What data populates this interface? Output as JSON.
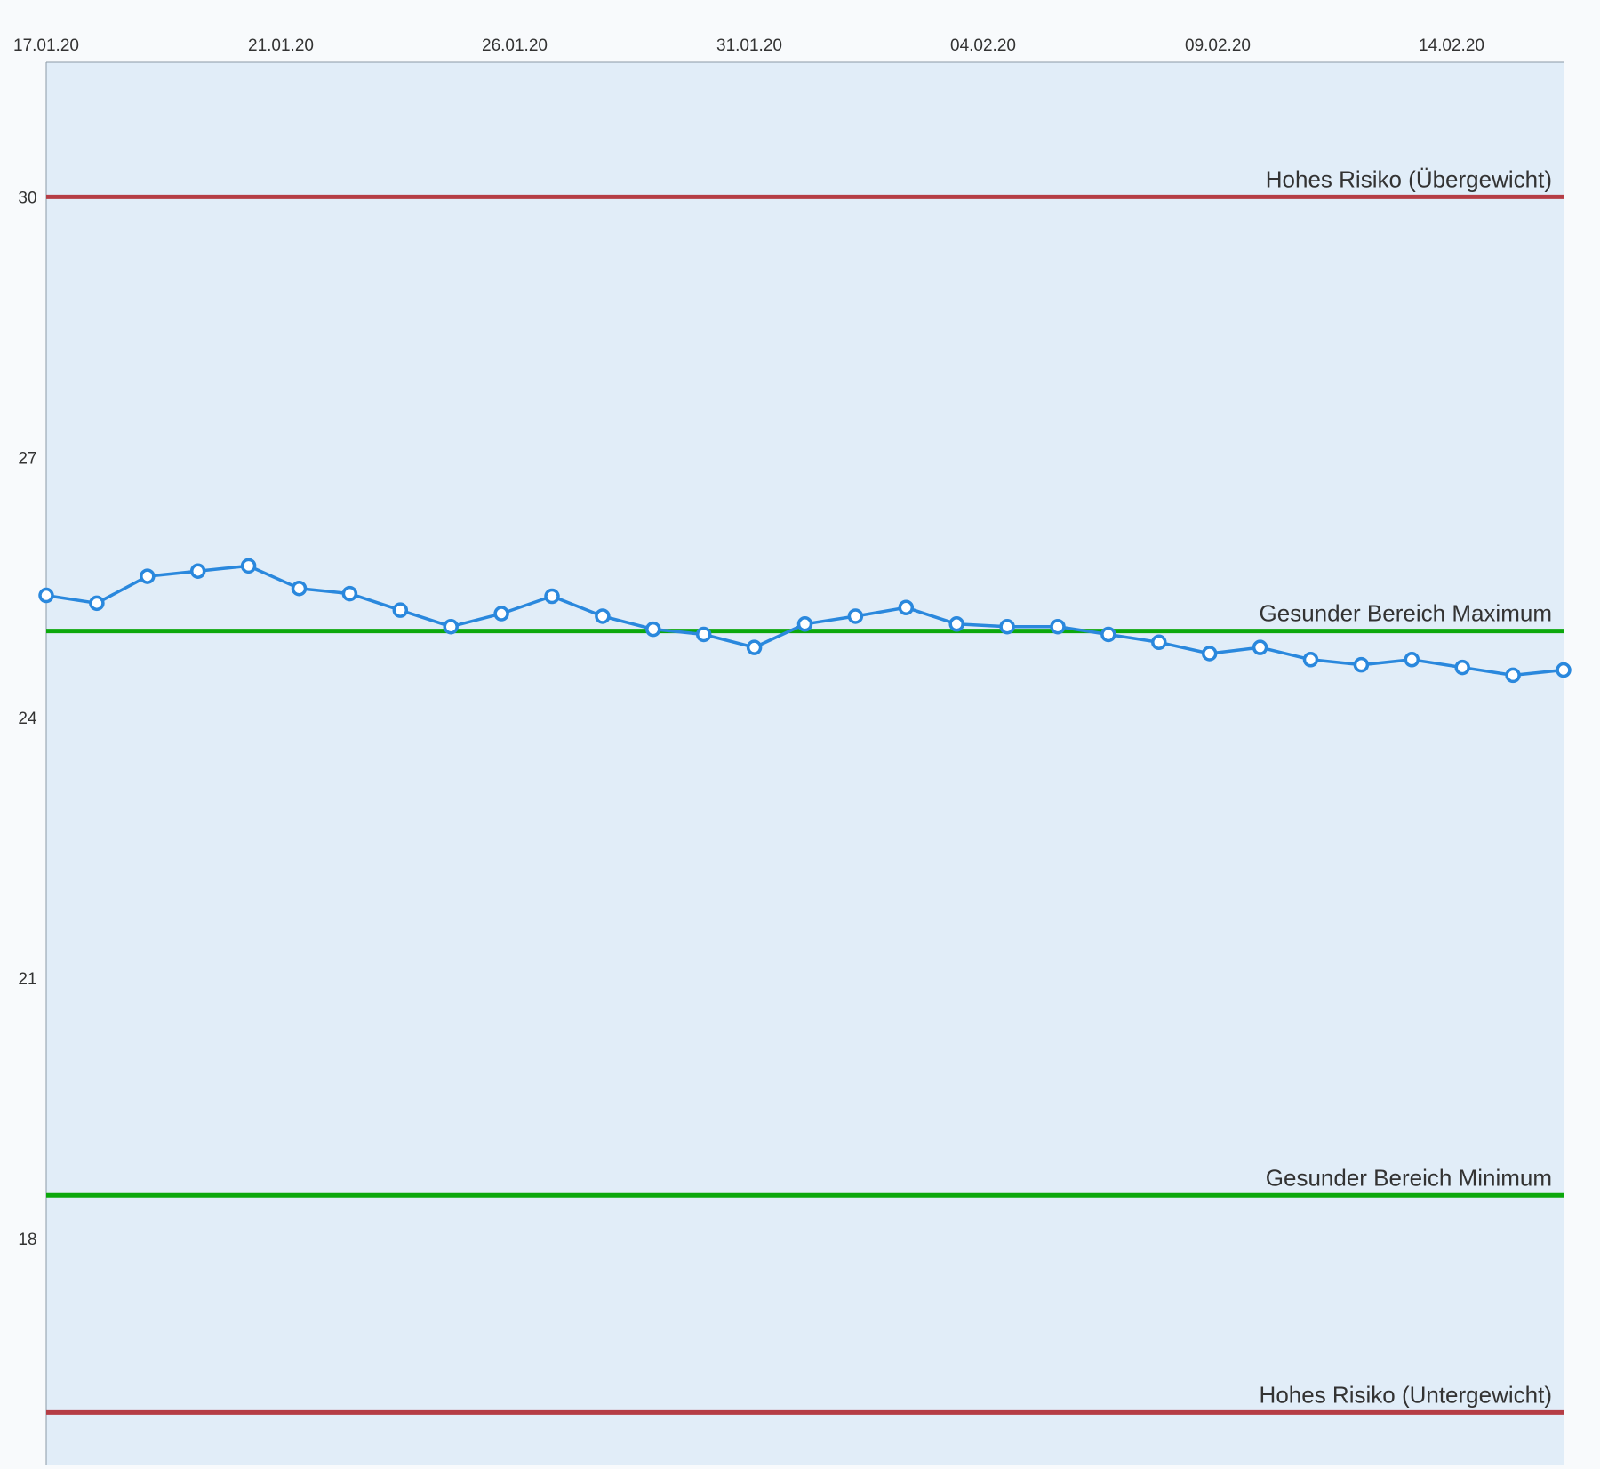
{
  "colors": {
    "plot_background": "#e1edf8",
    "series_line": "#2a88dd",
    "marker_fill": "#ffffff",
    "healthy_line": "#0ca80c",
    "risk_line": "#b53d45",
    "axis_line": "#8c99a6"
  },
  "chart_data": {
    "type": "line",
    "title": "",
    "xlabel": "",
    "ylabel": "",
    "x_tick_labels": [
      "17.01.20",
      "21.01.20",
      "26.01.20",
      "31.01.20",
      "04.02.20",
      "09.02.20",
      "14.02.20"
    ],
    "x_axis_position": "top",
    "y_ticks": [
      "30",
      "27",
      "24",
      "21",
      "18"
    ],
    "ylim": [
      15.4,
      31.55
    ],
    "grid": false,
    "legend": "none",
    "reference_lines": [
      {
        "label": "Hohes Risiko (Übergewicht)",
        "value": 30,
        "color": "risk"
      },
      {
        "label": "Gesunder Bereich Maximum",
        "value": 25,
        "color": "healthy"
      },
      {
        "label": "Gesunder Bereich Minimum",
        "value": 18.5,
        "color": "healthy"
      },
      {
        "label": "Hohes Risiko (Untergewicht)",
        "value": 16,
        "color": "risk"
      }
    ],
    "series": [
      {
        "values": [
          25.41,
          25.32,
          25.63,
          25.69,
          25.75,
          25.49,
          25.43,
          25.24,
          25.05,
          25.2,
          25.4,
          25.17,
          25.02,
          24.96,
          24.81,
          25.08,
          25.17,
          25.27,
          25.08,
          25.05,
          25.05,
          24.96,
          24.87,
          24.74,
          24.81,
          24.67,
          24.61,
          24.67,
          24.58,
          24.49,
          24.55
        ]
      }
    ]
  }
}
